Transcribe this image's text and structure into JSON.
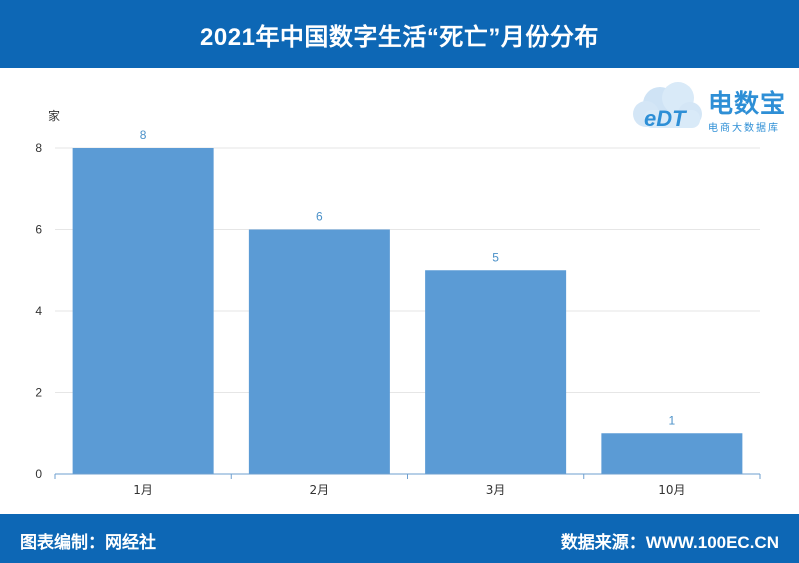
{
  "header": {
    "title": "2021年中国数字生活“死亡”月份分布"
  },
  "logo": {
    "name": "电数宝",
    "tagline": "电商大数据库",
    "mark_text": "eDT"
  },
  "footer": {
    "editor": "图表编制：网经社",
    "source": "数据来源：WWW.100EC.CN"
  },
  "colors": {
    "header_bg": "#0d67b5",
    "bar": "#5b9bd5",
    "label": "#4a90c8"
  },
  "chart_data": {
    "type": "bar",
    "title": "2021年中国数字生活“死亡”月份分布",
    "ylabel": "家",
    "xlabel": "",
    "categories": [
      "1月",
      "2月",
      "3月",
      "10月"
    ],
    "values": [
      8,
      6,
      5,
      1
    ],
    "ylim": [
      0,
      8
    ],
    "yticks": [
      0,
      2,
      4,
      6,
      8
    ],
    "grid": true,
    "data_labels": true
  }
}
